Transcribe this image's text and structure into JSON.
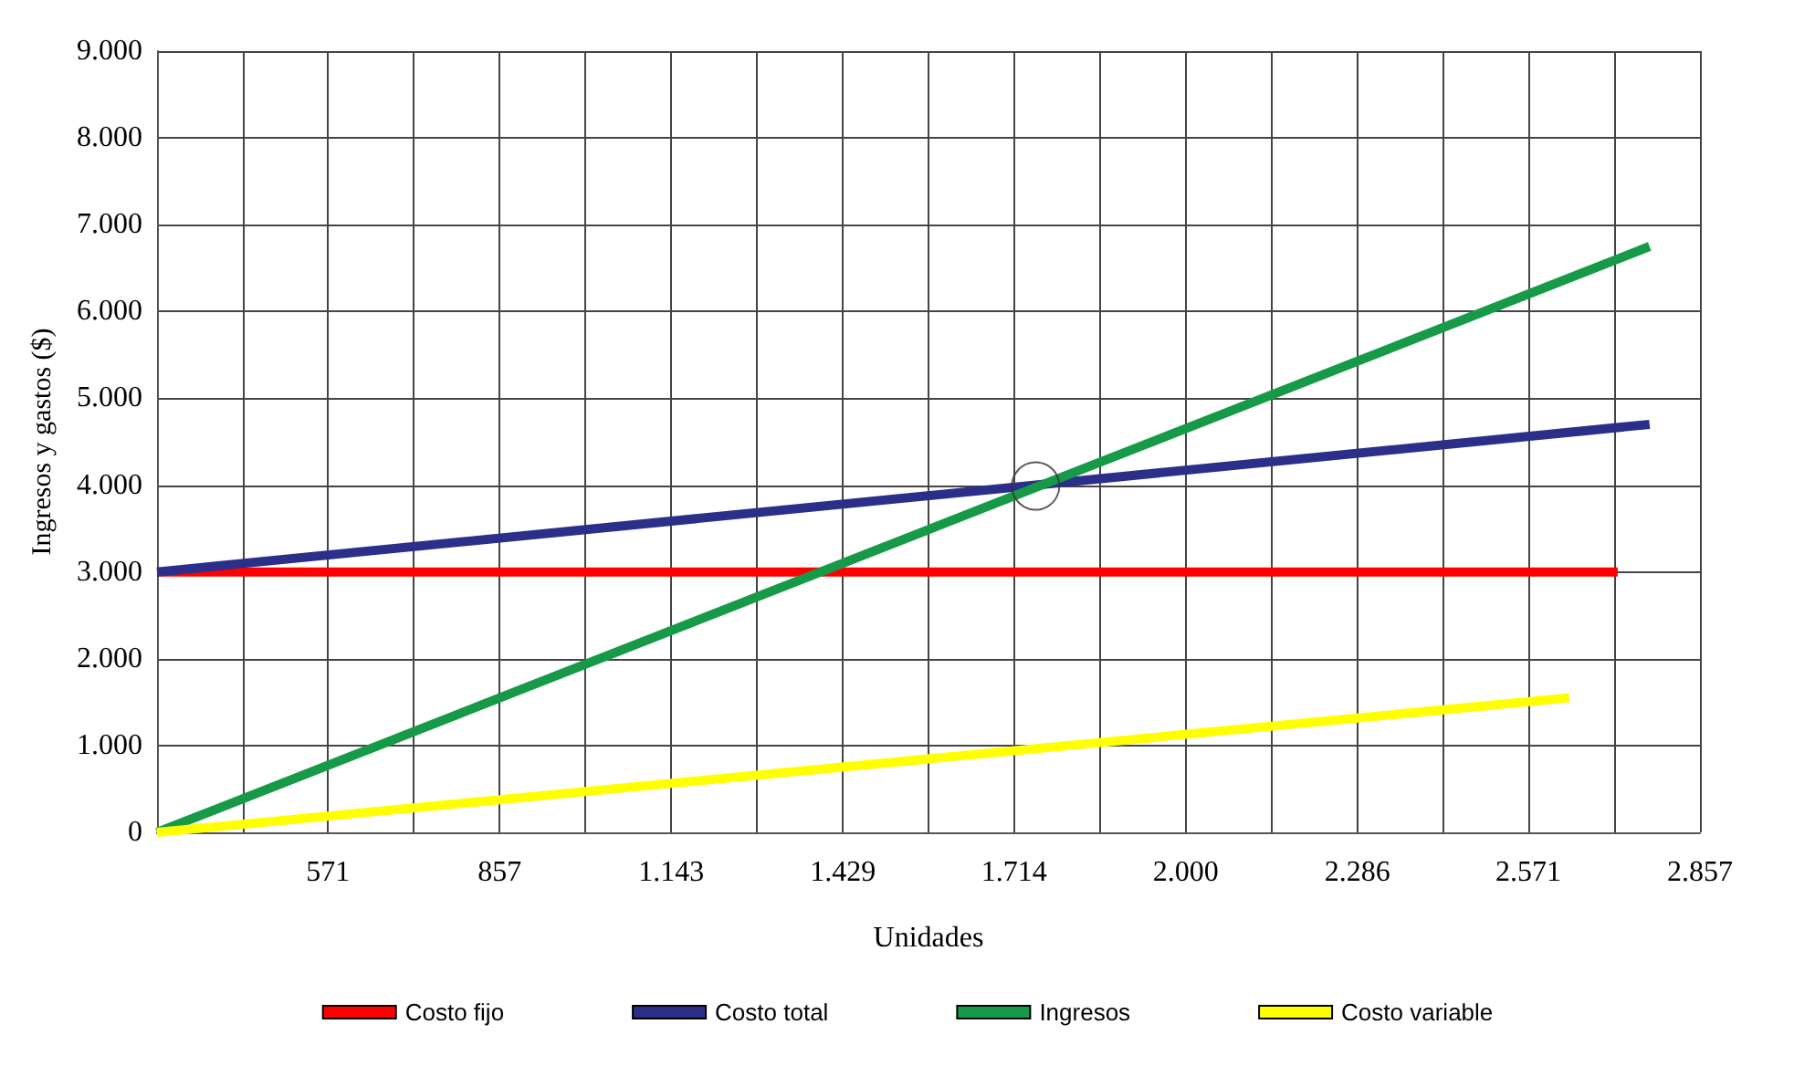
{
  "chart_data": {
    "type": "line",
    "xlabel": "Unidades",
    "ylabel": "Ingresos y gastos ($)",
    "xlim": [
      286,
      2857
    ],
    "xticks": [
      {
        "value": 429,
        "label": null
      },
      571,
      {
        "value": 714,
        "label": null
      },
      857,
      {
        "value": 1000,
        "label": null
      },
      {
        "value": 1143,
        "label": "1.143"
      },
      {
        "value": 1286,
        "label": null
      },
      {
        "value": 1429,
        "label": "1.429"
      },
      {
        "value": 1571,
        "label": null
      },
      {
        "value": 1714,
        "label": "1.714"
      },
      {
        "value": 1857,
        "label": null
      },
      {
        "value": 2000,
        "label": "2.000"
      },
      {
        "value": 2143,
        "label": null
      },
      {
        "value": 2286,
        "label": "2.286"
      },
      {
        "value": 2429,
        "label": null
      },
      {
        "value": 2571,
        "label": "2.571"
      },
      {
        "value": 2714,
        "label": null
      },
      {
        "value": 2857,
        "label": "2.857"
      }
    ],
    "ylim": [
      0,
      9000
    ],
    "yticks": [
      0,
      {
        "value": 1000,
        "label": "1.000"
      },
      {
        "value": 2000,
        "label": "2.000"
      },
      {
        "value": 3000,
        "label": "3.000"
      },
      {
        "value": 4000,
        "label": "4.000"
      },
      {
        "value": 5000,
        "label": "5.000"
      },
      {
        "value": 6000,
        "label": "6.000"
      },
      {
        "value": 7000,
        "label": "7.000"
      },
      {
        "value": 8000,
        "label": "8.000"
      },
      {
        "value": 9000,
        "label": "9.000"
      }
    ],
    "grid": true,
    "legend": "bottom",
    "marker": "none",
    "line_style": "solid",
    "series": [
      {
        "name": "Costo fijo",
        "color": "#ff0000",
        "x": [
          286,
          2720
        ],
        "values": [
          3000,
          3000
        ]
      },
      {
        "name": "Costo total",
        "color": "#2b2f8a",
        "x": [
          286,
          2773
        ],
        "values": [
          3000,
          4700
        ]
      },
      {
        "name": "Ingresos",
        "color": "#169a48",
        "x": [
          286,
          2773
        ],
        "values": [
          0,
          6750
        ]
      },
      {
        "name": "Costo variable",
        "color": "#ffff00",
        "x": [
          286,
          2639
        ],
        "values": [
          0,
          1550
        ]
      },
      {
        "type": "scatter",
        "marker": "circle",
        "color": "#333333",
        "x": [
          1750
        ],
        "values": [
          3990
        ]
      }
    ]
  }
}
